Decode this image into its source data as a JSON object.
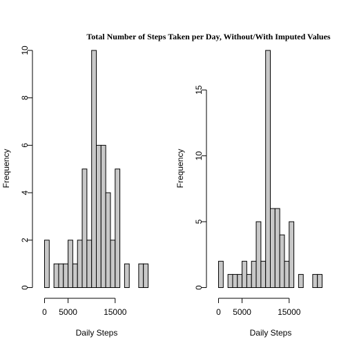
{
  "chart_data": [
    {
      "type": "bar",
      "title": "Total Number of Steps Taken per Day, Without/With Imputed Values",
      "xlabel": "Daily Steps",
      "ylabel": "Frequency",
      "bin_width": 1000,
      "x_start": 0,
      "xticks": [
        0,
        5000,
        15000
      ],
      "xtick_labels": [
        "0",
        "5000",
        "15000"
      ],
      "ylim": [
        0,
        10
      ],
      "yticks": [
        0,
        2,
        4,
        6,
        8,
        10
      ],
      "ytick_labels": [
        "0",
        "2",
        "4",
        "6",
        "8",
        "10"
      ],
      "values": [
        2,
        0,
        1,
        1,
        1,
        2,
        1,
        2,
        5,
        2,
        10,
        6,
        6,
        4,
        2,
        5,
        0,
        1,
        0,
        0,
        1,
        1
      ],
      "grid": false
    },
    {
      "type": "bar",
      "title": "",
      "xlabel": "Daily Steps",
      "ylabel": "Frequency",
      "bin_width": 1000,
      "x_start": 0,
      "xticks": [
        0,
        5000,
        15000
      ],
      "xtick_labels": [
        "0",
        "5000",
        "15000"
      ],
      "ylim": [
        0,
        18
      ],
      "yticks": [
        0,
        5,
        10,
        15
      ],
      "ytick_labels": [
        "0",
        "5",
        "10",
        "15"
      ],
      "values": [
        2,
        0,
        1,
        1,
        1,
        2,
        1,
        2,
        5,
        2,
        18,
        6,
        6,
        4,
        2,
        5,
        0,
        1,
        0,
        0,
        1,
        1
      ],
      "grid": false
    }
  ],
  "colors": {
    "bar_fill": "#c8c8c8",
    "bar_stroke": "#000000",
    "axis": "#000000"
  }
}
